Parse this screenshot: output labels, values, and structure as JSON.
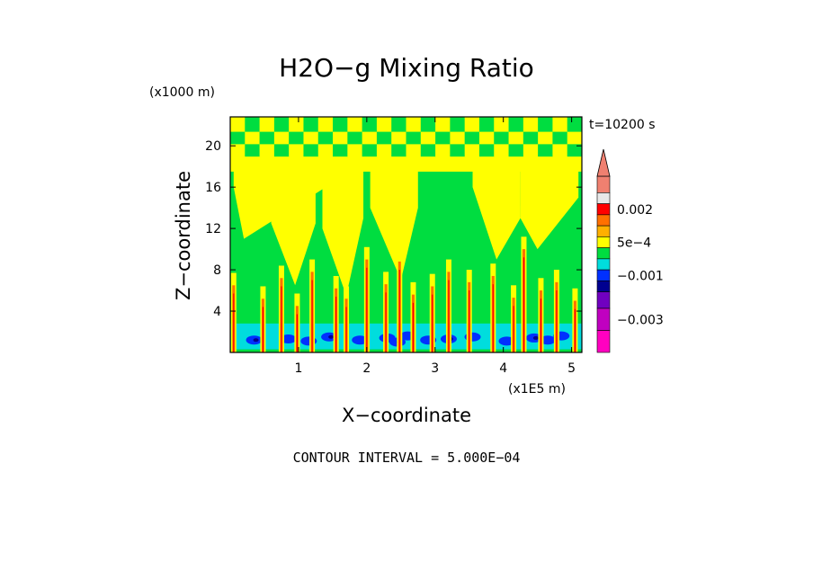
{
  "chart_data": {
    "type": "heatmap",
    "title": "H2O−g Mixing Ratio",
    "xlabel": "X−coordinate",
    "ylabel": "Z−coordinate",
    "x_unit": "(x1E5 m)",
    "y_unit": "(x1000 m)",
    "time_label": "t=10200 s",
    "footer": "CONTOUR INTERVAL = 5.000E−04",
    "xlim": [
      0,
      5.15
    ],
    "ylim": [
      0,
      22.8
    ],
    "x_ticks": [
      1,
      2,
      3,
      4,
      5
    ],
    "x_tick_labels": [
      "1",
      "2",
      "3",
      "4",
      "5"
    ],
    "y_ticks": [
      4,
      8,
      12,
      16,
      20
    ],
    "y_tick_labels": [
      "4",
      "8",
      "12",
      "16",
      "20"
    ],
    "colorbar": {
      "labels": [
        "0.002",
        "5e−4",
        "−0.001",
        "−0.003"
      ],
      "label_values": [
        0.002,
        0.0005,
        -0.001,
        -0.003
      ],
      "bands": [
        {
          "color": "#f08070",
          "value": 0.003
        },
        {
          "color": "#e8e8e8",
          "value": 0.0025
        },
        {
          "color": "#ff0000",
          "value": 0.002
        },
        {
          "color": "#ff7000",
          "value": 0.0015
        },
        {
          "color": "#ffb000",
          "value": 0.001
        },
        {
          "color": "#ffff00",
          "value": 0.0005
        },
        {
          "color": "#00dd40",
          "value": 0.0
        },
        {
          "color": "#00dddd",
          "value": -0.0005
        },
        {
          "color": "#0030ff",
          "value": -0.001
        },
        {
          "color": "#000090",
          "value": -0.0015
        },
        {
          "color": "#7000c0",
          "value": -0.002
        },
        {
          "color": "#c000c0",
          "value": -0.003
        },
        {
          "color": "#ff00c0",
          "value": -0.004
        }
      ]
    },
    "field": {
      "background": "#00dd40",
      "yellow_columns": [
        {
          "x": [
            0.05,
            0.2,
            1.4
          ],
          "z_bottom": [
            16,
            11,
            16
          ]
        },
        {
          "x": [
            0.6,
            0.95,
            1.25
          ],
          "z_bottom": [
            12.5,
            6.5,
            12.5
          ]
        },
        {
          "x": [
            1.35,
            1.7,
            1.95
          ],
          "z_bottom": [
            12,
            5.5,
            13
          ]
        },
        {
          "x": [
            2.05,
            2.5,
            2.75
          ],
          "z_bottom": [
            14,
            7,
            14
          ]
        },
        {
          "x": [
            3.55,
            3.9,
            4.25
          ],
          "z_bottom": [
            16,
            9,
            13
          ]
        },
        {
          "x": [
            4.25,
            4.5,
            5.1
          ],
          "z_bottom": [
            13,
            10,
            15
          ]
        }
      ],
      "upper_yellow_band_z": [
        17.5,
        19
      ],
      "checker_band_z": [
        19,
        22.8
      ],
      "low_level_cyan_z": [
        0.3,
        2.8
      ],
      "low_level_blue_cells": [
        {
          "x": 0.35,
          "z": 1.2
        },
        {
          "x": 0.85,
          "z": 1.3
        },
        {
          "x": 1.15,
          "z": 1.1
        },
        {
          "x": 1.45,
          "z": 1.5
        },
        {
          "x": 1.9,
          "z": 1.2
        },
        {
          "x": 2.3,
          "z": 1.4
        },
        {
          "x": 2.45,
          "z": 1.0
        },
        {
          "x": 2.6,
          "z": 1.6
        },
        {
          "x": 2.9,
          "z": 1.2
        },
        {
          "x": 3.2,
          "z": 1.3
        },
        {
          "x": 3.55,
          "z": 1.5
        },
        {
          "x": 4.05,
          "z": 1.1
        },
        {
          "x": 4.45,
          "z": 1.4
        },
        {
          "x": 4.65,
          "z": 1.2
        },
        {
          "x": 4.85,
          "z": 1.6
        }
      ],
      "spikes": [
        {
          "x": 0.05,
          "top": 6.5
        },
        {
          "x": 0.48,
          "top": 5.2
        },
        {
          "x": 0.75,
          "top": 7.2
        },
        {
          "x": 0.98,
          "top": 4.5
        },
        {
          "x": 1.2,
          "top": 7.8
        },
        {
          "x": 1.55,
          "top": 6.2
        },
        {
          "x": 1.7,
          "top": 5.2
        },
        {
          "x": 2.0,
          "top": 9.0
        },
        {
          "x": 2.28,
          "top": 6.6
        },
        {
          "x": 2.48,
          "top": 8.8
        },
        {
          "x": 2.68,
          "top": 5.6
        },
        {
          "x": 2.96,
          "top": 6.4
        },
        {
          "x": 3.2,
          "top": 7.8
        },
        {
          "x": 3.5,
          "top": 6.8
        },
        {
          "x": 3.85,
          "top": 7.4
        },
        {
          "x": 4.15,
          "top": 5.3
        },
        {
          "x": 4.3,
          "top": 10.0
        },
        {
          "x": 4.55,
          "top": 6.0
        },
        {
          "x": 4.78,
          "top": 6.8
        },
        {
          "x": 5.05,
          "top": 5.0
        }
      ]
    }
  }
}
